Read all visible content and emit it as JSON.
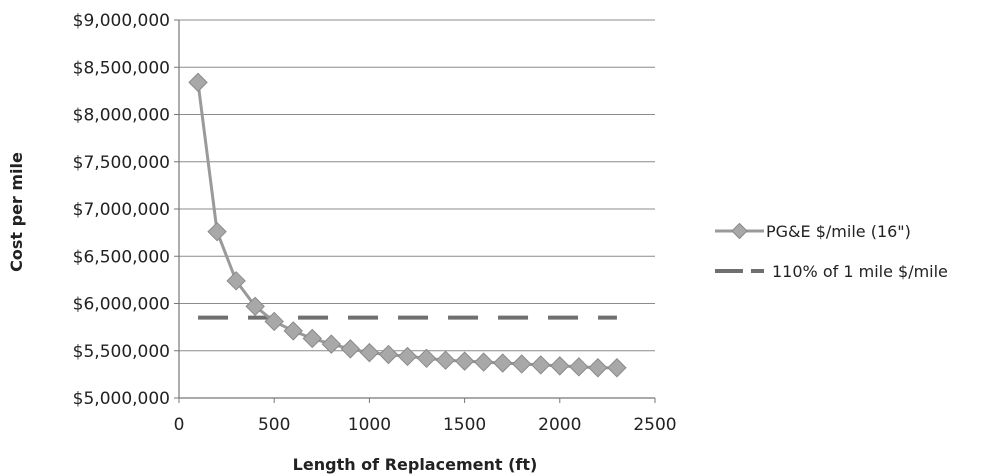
{
  "chart_data": {
    "type": "line",
    "title": "",
    "xlabel": "Length of Replacement (ft)",
    "ylabel": "Cost per mile",
    "xlim": [
      0,
      2500
    ],
    "ylim": [
      5000000,
      9000000
    ],
    "x_ticks": [
      0,
      500,
      1000,
      1500,
      2000,
      2500
    ],
    "x_tick_labels": [
      "0",
      "500",
      "1000",
      "1500",
      "2000",
      "2500"
    ],
    "y_ticks": [
      5000000,
      5500000,
      6000000,
      6500000,
      7000000,
      7500000,
      8000000,
      8500000,
      9000000
    ],
    "y_tick_labels": [
      "$5,000,000",
      "$5,500,000",
      "$6,000,000",
      "$6,500,000",
      "$7,000,000",
      "$7,500,000",
      "$8,000,000",
      "$8,500,000",
      "$9,000,000"
    ],
    "grid": "horizontal",
    "legend_position": "right",
    "series": [
      {
        "name": "PG&E $/mile (16\")",
        "style": "solid-diamond",
        "color": "#9a9a9a",
        "x": [
          100,
          200,
          300,
          400,
          500,
          600,
          700,
          800,
          900,
          1000,
          1100,
          1200,
          1300,
          1400,
          1500,
          1600,
          1700,
          1800,
          1900,
          2000,
          2100,
          2200,
          2300
        ],
        "y": [
          8340000,
          6760000,
          6240000,
          5970000,
          5810000,
          5710000,
          5630000,
          5570000,
          5520000,
          5480000,
          5460000,
          5440000,
          5420000,
          5400000,
          5390000,
          5380000,
          5370000,
          5360000,
          5350000,
          5340000,
          5330000,
          5320000,
          5320000
        ]
      },
      {
        "name": "110% of 1 mile $/mile",
        "style": "dashed",
        "color": "#6f6f6f",
        "x": [
          100,
          2300
        ],
        "y": [
          5850000,
          5850000
        ]
      }
    ]
  }
}
